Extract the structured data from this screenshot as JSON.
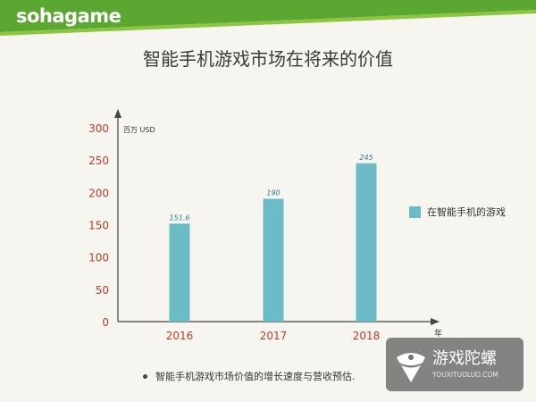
{
  "header": {
    "logo_text": "sohagame",
    "band_color": "#5aa832",
    "accent_color": "#8cc63f"
  },
  "chart_data": {
    "type": "bar",
    "title": "智能手机游戏市场在将来的价值",
    "ylabel": "百万 USD",
    "xlabel": "年",
    "ylim": [
      0,
      300
    ],
    "yticks": [
      0,
      50,
      100,
      150,
      200,
      250,
      300
    ],
    "categories": [
      "2016",
      "2017",
      "2018"
    ],
    "series": [
      {
        "name": "在智能手机的游戏",
        "values": [
          151.6,
          190,
          245
        ],
        "labels": [
          "151.6",
          "190",
          "245"
        ],
        "color": "#6bbcc6"
      }
    ],
    "legend_position": "right",
    "grid": false,
    "ytick_color": "#c0392b",
    "xtick_color": "#c0392b"
  },
  "note": {
    "text": "智能手机游戏市场价值的增长速度与营收预估."
  },
  "watermark": {
    "name_cn": "游戏陀螺",
    "url": "YOUXITUOLUO.COM"
  }
}
